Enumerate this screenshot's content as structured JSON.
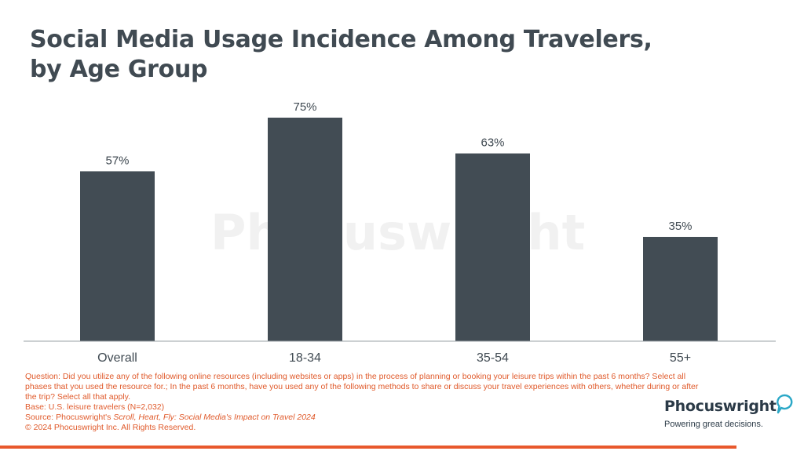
{
  "title": {
    "line1": "Social Media Usage Incidence Among Travelers,",
    "line2": "by Age Group"
  },
  "chart_data": {
    "type": "bar",
    "categories": [
      "Overall",
      "18-34",
      "35-54",
      "55+"
    ],
    "values": [
      57,
      75,
      63,
      35
    ],
    "value_labels": [
      "57%",
      "75%",
      "63%",
      "35%"
    ],
    "ylim": [
      0,
      100
    ],
    "grid": false,
    "bar_color": "#424c54",
    "axis_color": "#9aa0a4"
  },
  "watermark": "Phocuswright",
  "notes": {
    "question": "Question: Did you utilize any of the following online resources (including websites or apps) in the process of planning or booking your leisure trips within the past 6 months? Select all phases that you used the resource for.; In the past 6 months, have you used any of the following methods to share or discuss your travel experiences with others, whether during or after the trip? Select all that apply.",
    "base": "Base: U.S. leisure travelers (N=2,032)",
    "source_prefix": "Source: Phocuswright's ",
    "source_title": "Scroll, Heart, Fly: Social Media's Impact on Travel 2024",
    "copyright": "© 2024 Phocuswright Inc. All Rights Reserved."
  },
  "logo": {
    "name": "Phocuswright",
    "tagline": "Powering great decisions."
  },
  "colors": {
    "accent": "#e8582c",
    "title": "#404a52",
    "note_text": "#e05a2b"
  }
}
